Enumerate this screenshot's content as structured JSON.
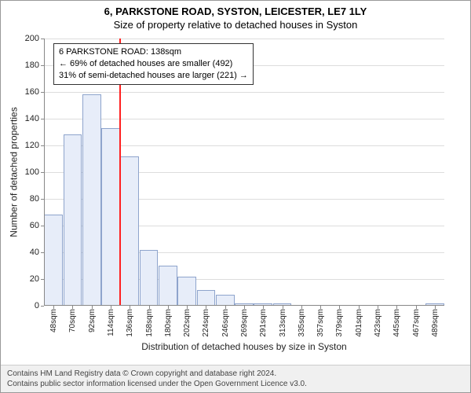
{
  "title": "6, PARKSTONE ROAD, SYSTON, LEICESTER, LE7 1LY",
  "subtitle": "Size of property relative to detached houses in Syston",
  "ylabel": "Number of detached properties",
  "xlabel": "Distribution of detached houses by size in Syston",
  "chart": {
    "type": "histogram",
    "ylim": [
      0,
      200
    ],
    "ytick_step": 20,
    "bar_fill": "#e7edf9",
    "bar_border": "#8ea4cc",
    "grid_color": "#dddddd",
    "background_color": "#ffffff",
    "ref_line_color": "#ff2020",
    "ref_line_x_index": 4,
    "categories": [
      "48sqm",
      "70sqm",
      "92sqm",
      "114sqm",
      "136sqm",
      "158sqm",
      "180sqm",
      "202sqm",
      "224sqm",
      "246sqm",
      "269sqm",
      "291sqm",
      "313sqm",
      "335sqm",
      "357sqm",
      "379sqm",
      "401sqm",
      "423sqm",
      "445sqm",
      "467sqm",
      "489sqm"
    ],
    "values": [
      68,
      128,
      158,
      133,
      112,
      42,
      30,
      22,
      12,
      8,
      2,
      2,
      2,
      0,
      0,
      0,
      0,
      0,
      0,
      0,
      2
    ]
  },
  "annotation": {
    "line1": "6 PARKSTONE ROAD: 138sqm",
    "line2": "← 69% of detached houses are smaller (492)",
    "line3": "31% of semi-detached houses are larger (221) →"
  },
  "footer": {
    "line1": "Contains HM Land Registry data © Crown copyright and database right 2024.",
    "line2": "Contains public sector information licensed under the Open Government Licence v3.0."
  }
}
